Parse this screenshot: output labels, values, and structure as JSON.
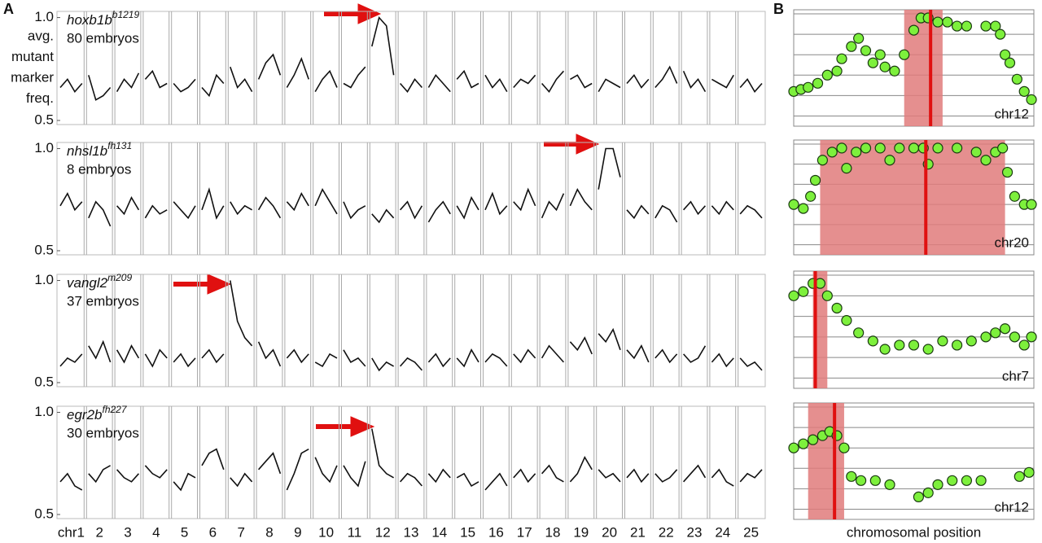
{
  "panel_labels": [
    "A",
    "B"
  ],
  "chart_data": [
    {
      "type": "line",
      "title": {
        "gene": "hoxb1b",
        "allele": "b1219"
      },
      "subtitle": "80 embryos",
      "ylabel": [
        "avg.",
        "mutant",
        "marker",
        "freq."
      ],
      "color": "#111111",
      "ylim": [
        0.48,
        1.03
      ],
      "yticks": [
        0.5,
        {
          "value": 1,
          "label": "1.0"
        }
      ],
      "values": [
        [
          0.66,
          0.7,
          0.64,
          0.68
        ],
        [
          0.72,
          0.6,
          0.62,
          0.66
        ],
        [
          0.64,
          0.7,
          0.66,
          0.73
        ],
        [
          0.7,
          0.74,
          0.66,
          0.68
        ],
        [
          0.68,
          0.64,
          0.66,
          0.7
        ],
        [
          0.66,
          0.62,
          0.72,
          0.68
        ],
        [
          0.76,
          0.66,
          0.7,
          0.64
        ],
        [
          0.7,
          0.78,
          0.82,
          0.72
        ],
        [
          0.66,
          0.72,
          0.8,
          0.7
        ],
        [
          0.64,
          0.7,
          0.74,
          0.66
        ],
        [
          0.68,
          0.66,
          0.72,
          0.76
        ],
        [
          0.86,
          1.0,
          0.96,
          0.72
        ],
        [
          0.68,
          0.64,
          0.7,
          0.66
        ],
        [
          0.66,
          0.72,
          0.68,
          0.64
        ],
        [
          0.7,
          0.74,
          0.66,
          0.68
        ],
        [
          0.72,
          0.66,
          0.7,
          0.64
        ],
        [
          0.66,
          0.7,
          0.68,
          0.72
        ],
        [
          0.68,
          0.64,
          0.7,
          0.74
        ],
        [
          0.7,
          0.72,
          0.66,
          0.68
        ],
        [
          0.64,
          0.7,
          0.68,
          0.66
        ],
        [
          0.68,
          0.72,
          0.66,
          0.7
        ],
        [
          0.66,
          0.7,
          0.76,
          0.68
        ],
        [
          0.74,
          0.66,
          0.7,
          0.64
        ],
        [
          0.7,
          0.68,
          0.66,
          0.72
        ],
        [
          0.66,
          0.7,
          0.64,
          0.68
        ]
      ]
    },
    {
      "type": "line",
      "title": {
        "gene": "nhsl1b",
        "allele": "fh131"
      },
      "subtitle": "8 embryos",
      "color": "#111111",
      "ylim": [
        0.48,
        1.03
      ],
      "yticks": [
        0.5,
        {
          "value": 1,
          "label": "1.0"
        }
      ],
      "values": [
        [
          0.72,
          0.78,
          0.7,
          0.74
        ],
        [
          0.66,
          0.74,
          0.7,
          0.62
        ],
        [
          0.72,
          0.68,
          0.76,
          0.7
        ],
        [
          0.66,
          0.72,
          0.68,
          0.7
        ],
        [
          0.74,
          0.7,
          0.66,
          0.72
        ],
        [
          0.7,
          0.8,
          0.66,
          0.72
        ],
        [
          0.74,
          0.68,
          0.72,
          0.7
        ],
        [
          0.7,
          0.76,
          0.72,
          0.66
        ],
        [
          0.74,
          0.7,
          0.78,
          0.72
        ],
        [
          0.72,
          0.8,
          0.74,
          0.68
        ],
        [
          0.74,
          0.66,
          0.7,
          0.72
        ],
        [
          0.68,
          0.64,
          0.7,
          0.66
        ],
        [
          0.7,
          0.74,
          0.66,
          0.72
        ],
        [
          0.64,
          0.7,
          0.74,
          0.68
        ],
        [
          0.72,
          0.66,
          0.76,
          0.7
        ],
        [
          0.7,
          0.78,
          0.68,
          0.72
        ],
        [
          0.74,
          0.7,
          0.8,
          0.72
        ],
        [
          0.66,
          0.74,
          0.7,
          0.78
        ],
        [
          0.72,
          0.8,
          0.74,
          0.7
        ],
        [
          0.8,
          1.0,
          1.0,
          0.86
        ],
        [
          0.7,
          0.66,
          0.72,
          0.68
        ],
        [
          0.66,
          0.72,
          0.7,
          0.64
        ],
        [
          0.7,
          0.74,
          0.68,
          0.72
        ],
        [
          0.72,
          0.68,
          0.74,
          0.7
        ],
        [
          0.68,
          0.72,
          0.7,
          0.66
        ]
      ]
    },
    {
      "type": "line",
      "title": {
        "gene": "vangl2",
        "allele": "m209"
      },
      "subtitle": "37 embryos",
      "color": "#111111",
      "ylim": [
        0.48,
        1.03
      ],
      "yticks": [
        0.5,
        {
          "value": 1,
          "label": "1.0"
        }
      ],
      "values": [
        [
          0.58,
          0.62,
          0.6,
          0.64
        ],
        [
          0.68,
          0.62,
          0.7,
          0.6
        ],
        [
          0.66,
          0.6,
          0.68,
          0.62
        ],
        [
          0.64,
          0.58,
          0.66,
          0.62
        ],
        [
          0.6,
          0.64,
          0.58,
          0.62
        ],
        [
          0.62,
          0.66,
          0.6,
          0.64
        ],
        [
          1.0,
          0.8,
          0.72,
          0.68
        ],
        [
          0.7,
          0.62,
          0.66,
          0.58
        ],
        [
          0.62,
          0.66,
          0.6,
          0.64
        ],
        [
          0.6,
          0.58,
          0.64,
          0.62
        ],
        [
          0.66,
          0.6,
          0.62,
          0.58
        ],
        [
          0.62,
          0.56,
          0.6,
          0.58
        ],
        [
          0.58,
          0.62,
          0.6,
          0.56
        ],
        [
          0.6,
          0.64,
          0.58,
          0.62
        ],
        [
          0.62,
          0.58,
          0.66,
          0.6
        ],
        [
          0.6,
          0.64,
          0.62,
          0.58
        ],
        [
          0.64,
          0.6,
          0.66,
          0.62
        ],
        [
          0.62,
          0.68,
          0.64,
          0.6
        ],
        [
          0.7,
          0.66,
          0.72,
          0.64
        ],
        [
          0.74,
          0.7,
          0.76,
          0.66
        ],
        [
          0.66,
          0.62,
          0.68,
          0.6
        ],
        [
          0.62,
          0.66,
          0.6,
          0.64
        ],
        [
          0.64,
          0.6,
          0.62,
          0.68
        ],
        [
          0.6,
          0.64,
          0.58,
          0.62
        ],
        [
          0.62,
          0.58,
          0.6,
          0.56
        ]
      ]
    },
    {
      "type": "line",
      "title": {
        "gene": "egr2b",
        "allele": "fh227"
      },
      "subtitle": "30 embryos",
      "color": "#111111",
      "ylim": [
        0.48,
        1.03
      ],
      "yticks": [
        0.5,
        {
          "value": 1,
          "label": "1.0"
        }
      ],
      "categories": [
        "chr1",
        "2",
        "3",
        "4",
        "5",
        "6",
        "7",
        "8",
        "9",
        "10",
        "11",
        "12",
        "13",
        "14",
        "15",
        "16",
        "17",
        "18",
        "19",
        "20",
        "21",
        "22",
        "23",
        "24",
        "25"
      ],
      "values": [
        [
          0.66,
          0.7,
          0.64,
          0.62
        ],
        [
          0.7,
          0.66,
          0.72,
          0.74
        ],
        [
          0.72,
          0.68,
          0.66,
          0.7
        ],
        [
          0.74,
          0.7,
          0.68,
          0.72
        ],
        [
          0.66,
          0.62,
          0.7,
          0.68
        ],
        [
          0.74,
          0.8,
          0.82,
          0.72
        ],
        [
          0.68,
          0.64,
          0.7,
          0.66
        ],
        [
          0.72,
          0.76,
          0.8,
          0.7
        ],
        [
          0.62,
          0.7,
          0.8,
          0.82
        ],
        [
          0.78,
          0.7,
          0.66,
          0.74
        ],
        [
          0.74,
          0.68,
          0.64,
          0.76
        ],
        [
          0.92,
          0.74,
          0.7,
          0.68
        ],
        [
          0.66,
          0.7,
          0.68,
          0.64
        ],
        [
          0.7,
          0.66,
          0.72,
          0.68
        ],
        [
          0.68,
          0.7,
          0.64,
          0.66
        ],
        [
          0.62,
          0.66,
          0.7,
          0.64
        ],
        [
          0.68,
          0.72,
          0.66,
          0.7
        ],
        [
          0.7,
          0.74,
          0.68,
          0.66
        ],
        [
          0.66,
          0.7,
          0.78,
          0.72
        ],
        [
          0.72,
          0.68,
          0.7,
          0.66
        ],
        [
          0.68,
          0.72,
          0.66,
          0.7
        ],
        [
          0.7,
          0.66,
          0.68,
          0.72
        ],
        [
          0.66,
          0.7,
          0.74,
          0.68
        ],
        [
          0.68,
          0.72,
          0.66,
          0.64
        ],
        [
          0.66,
          0.7,
          0.68,
          0.72
        ]
      ]
    },
    {
      "type": "scatter",
      "label": "chr12",
      "color": "#7df03c",
      "highlight": [
        46,
        62
      ],
      "highlight_color": "#e07b7b",
      "marker": 57,
      "marker_color": "#e01010",
      "xlim": [
        0,
        100
      ],
      "ylim": [
        0.45,
        1.02
      ],
      "gridlines": [
        0.5,
        0.6,
        0.7,
        0.8,
        0.9,
        1.0
      ],
      "x": [
        0,
        3,
        6,
        10,
        14,
        18,
        20,
        24,
        27,
        30,
        33,
        36,
        38,
        42,
        46,
        50,
        53,
        56,
        60,
        64,
        68,
        72,
        80,
        84,
        86,
        88,
        90,
        93,
        96,
        99
      ],
      "values": [
        0.62,
        0.63,
        0.64,
        0.66,
        0.7,
        0.72,
        0.78,
        0.84,
        0.88,
        0.82,
        0.76,
        0.8,
        0.74,
        0.72,
        0.8,
        0.92,
        0.98,
        0.98,
        0.96,
        0.96,
        0.94,
        0.94,
        0.94,
        0.94,
        0.9,
        0.8,
        0.76,
        0.68,
        0.62,
        0.58
      ]
    },
    {
      "type": "scatter",
      "label": "chr20",
      "color": "#7df03c",
      "highlight": [
        11,
        88
      ],
      "highlight_color": "#e07b7b",
      "marker": 55,
      "marker_color": "#e01010",
      "xlim": [
        0,
        100
      ],
      "ylim": [
        0.45,
        1.02
      ],
      "gridlines": [
        0.5,
        0.6,
        0.7,
        0.8,
        0.9,
        1.0
      ],
      "x": [
        0,
        4,
        7,
        9,
        12,
        16,
        20,
        22,
        26,
        30,
        36,
        40,
        44,
        50,
        54,
        56,
        60,
        68,
        76,
        80,
        84,
        87,
        89,
        92,
        96,
        99
      ],
      "values": [
        0.7,
        0.68,
        0.74,
        0.82,
        0.92,
        0.96,
        0.98,
        0.88,
        0.96,
        0.98,
        0.98,
        0.92,
        0.98,
        0.98,
        0.98,
        0.9,
        0.98,
        0.98,
        0.96,
        0.92,
        0.96,
        0.98,
        0.86,
        0.74,
        0.7,
        0.7
      ]
    },
    {
      "type": "scatter",
      "label": "chr7",
      "color": "#7df03c",
      "highlight": [
        8,
        14
      ],
      "highlight_color": "#e07b7b",
      "marker": 9,
      "marker_color": "#e01010",
      "xlim": [
        0,
        100
      ],
      "ylim": [
        0.45,
        1.02
      ],
      "gridlines": [
        0.5,
        0.6,
        0.7,
        0.8,
        0.9,
        1.0
      ],
      "x": [
        0,
        4,
        8,
        11,
        14,
        18,
        22,
        27,
        33,
        38,
        44,
        50,
        56,
        62,
        68,
        74,
        80,
        84,
        88,
        92,
        96,
        99
      ],
      "values": [
        0.9,
        0.92,
        0.96,
        0.96,
        0.9,
        0.84,
        0.78,
        0.72,
        0.68,
        0.64,
        0.66,
        0.66,
        0.64,
        0.68,
        0.66,
        0.68,
        0.7,
        0.72,
        0.74,
        0.7,
        0.66,
        0.7
      ]
    },
    {
      "type": "scatter",
      "label": "chr12",
      "xlabel": "chromosomal position",
      "color": "#7df03c",
      "highlight": [
        6,
        21
      ],
      "highlight_color": "#e07b7b",
      "marker": 17,
      "marker_color": "#e01010",
      "xlim": [
        0,
        100
      ],
      "ylim": [
        0.45,
        1.02
      ],
      "gridlines": [
        0.5,
        0.6,
        0.7,
        0.8,
        0.9,
        1.0
      ],
      "x": [
        0,
        4,
        8,
        12,
        15,
        18,
        21,
        24,
        28,
        34,
        40,
        52,
        56,
        60,
        66,
        72,
        78,
        94,
        98
      ],
      "values": [
        0.8,
        0.82,
        0.84,
        0.86,
        0.88,
        0.86,
        0.8,
        0.66,
        0.64,
        0.64,
        0.62,
        0.56,
        0.58,
        0.62,
        0.64,
        0.64,
        0.64,
        0.66,
        0.68
      ]
    }
  ]
}
